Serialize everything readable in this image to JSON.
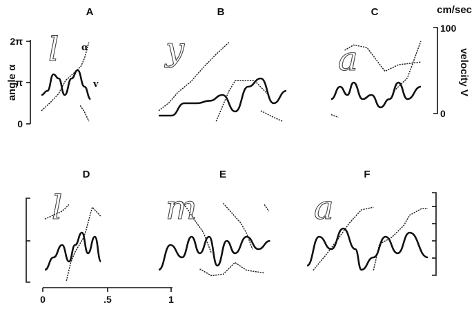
{
  "figure": {
    "left_axis": {
      "label": "angle α",
      "ticks": [
        "2π",
        "π",
        "0"
      ]
    },
    "right_axis": {
      "unit": "cm/sec",
      "label": "velocity V",
      "ticks": [
        "100",
        "0"
      ]
    },
    "time_axis": {
      "ticks": [
        "0",
        ".5",
        "1"
      ]
    },
    "curve_labels": {
      "angle": "α",
      "velocity": "v"
    }
  },
  "chart_data": [
    {
      "type": "line",
      "panel": "A",
      "letter": "l",
      "ylim": [
        0,
        6.2832
      ],
      "vlim": [
        0,
        100
      ],
      "series": [
        {
          "name": "α",
          "points": [
            [
              0,
              1.0
            ],
            [
              0.1,
              1.6
            ],
            [
              0.2,
              2.3
            ],
            [
              0.28,
              3.3
            ],
            [
              0.33,
              3.6
            ],
            [
              0.4,
              4.0
            ],
            [
              0.46,
              4.4
            ],
            [
              0.5,
              5.0
            ],
            [
              0.55,
              6.2
            ]
          ]
        },
        {
          "name": "α",
          "points": [
            [
              0.45,
              1.4
            ],
            [
              0.5,
              0.9
            ],
            [
              0.55,
              0.2
            ]
          ]
        },
        {
          "name": "v",
          "points": [
            [
              0,
              35
            ],
            [
              0.07,
              40
            ],
            [
              0.14,
              60
            ],
            [
              0.2,
              55
            ],
            [
              0.27,
              35
            ],
            [
              0.35,
              55
            ],
            [
              0.42,
              65
            ],
            [
              0.5,
              45
            ],
            [
              0.57,
              30
            ]
          ]
        }
      ]
    },
    {
      "type": "line",
      "panel": "B",
      "letter": "y",
      "ylim": [
        0,
        6.2832
      ],
      "vlim": [
        0,
        100
      ],
      "series": [
        {
          "name": "α",
          "points": [
            [
              0,
              1.0
            ],
            [
              0.08,
              1.6
            ],
            [
              0.15,
              2.4
            ],
            [
              0.25,
              3.2
            ],
            [
              0.35,
              4.3
            ],
            [
              0.45,
              5.3
            ],
            [
              0.55,
              6.2
            ]
          ]
        },
        {
          "name": "α",
          "points": [
            [
              0.45,
              0.2
            ],
            [
              0.55,
              2.5
            ],
            [
              0.6,
              3.3
            ],
            [
              0.75,
              3.3
            ],
            [
              0.85,
              2.3
            ]
          ]
        },
        {
          "name": "α",
          "points": [
            [
              0.8,
              1.0
            ],
            [
              0.9,
              0.5
            ],
            [
              0.97,
              0.2
            ]
          ]
        },
        {
          "name": "v",
          "points": [
            [
              0,
              10
            ],
            [
              0.1,
              10
            ],
            [
              0.2,
              25
            ],
            [
              0.3,
              25
            ],
            [
              0.4,
              28
            ],
            [
              0.5,
              35
            ],
            [
              0.6,
              15
            ],
            [
              0.7,
              45
            ],
            [
              0.8,
              55
            ],
            [
              0.9,
              25
            ],
            [
              1.0,
              40
            ]
          ]
        }
      ]
    },
    {
      "type": "line",
      "panel": "C",
      "letter": "a",
      "ylim": [
        0,
        6.2832
      ],
      "vlim": [
        0,
        100
      ],
      "series": [
        {
          "name": "α",
          "points": [
            [
              0.15,
              5.6
            ],
            [
              0.25,
              6.0
            ],
            [
              0.4,
              5.8
            ],
            [
              0.6,
              4.0
            ],
            [
              0.75,
              4.5
            ],
            [
              1.0,
              4.7
            ]
          ]
        },
        {
          "name": "α",
          "points": [
            [
              0.7,
              2.5
            ],
            [
              0.85,
              3.5
            ],
            [
              1.0,
              6.3
            ]
          ]
        },
        {
          "name": "α",
          "points": [
            [
              0,
              0.7
            ],
            [
              0.08,
              0.5
            ]
          ]
        },
        {
          "name": "v",
          "points": [
            [
              0,
              30
            ],
            [
              0.1,
              45
            ],
            [
              0.18,
              35
            ],
            [
              0.25,
              50
            ],
            [
              0.35,
              30
            ],
            [
              0.45,
              35
            ],
            [
              0.55,
              20
            ],
            [
              0.65,
              30
            ],
            [
              0.75,
              50
            ],
            [
              0.85,
              30
            ],
            [
              1.0,
              45
            ]
          ]
        }
      ]
    },
    {
      "type": "line",
      "panel": "D",
      "letter": "l",
      "ylim": [
        0,
        6.2832
      ],
      "vlim": [
        0,
        100
      ],
      "series": [
        {
          "name": "α",
          "points": [
            [
              0,
              4.8
            ],
            [
              0.1,
              5.1
            ],
            [
              0.2,
              5.4
            ],
            [
              0.28,
              5.9
            ]
          ]
        },
        {
          "name": "α",
          "points": [
            [
              0.25,
              0.1
            ],
            [
              0.3,
              1.5
            ],
            [
              0.35,
              2.3
            ],
            [
              0.45,
              3.4
            ],
            [
              0.48,
              4.0
            ],
            [
              0.52,
              5.0
            ],
            [
              0.55,
              5.7
            ],
            [
              0.65,
              5.0
            ]
          ]
        },
        {
          "name": "v",
          "points": [
            [
              0,
              15
            ],
            [
              0.1,
              30
            ],
            [
              0.2,
              45
            ],
            [
              0.28,
              25
            ],
            [
              0.35,
              45
            ],
            [
              0.43,
              60
            ],
            [
              0.5,
              35
            ],
            [
              0.58,
              55
            ],
            [
              0.65,
              25
            ]
          ]
        }
      ]
    },
    {
      "type": "line",
      "panel": "E",
      "letter": "m",
      "ylim": [
        0,
        6.2832
      ],
      "vlim": [
        0,
        100
      ],
      "series": [
        {
          "name": "α",
          "points": [
            [
              0.2,
              6.1
            ],
            [
              0.25,
              5.5
            ],
            [
              0.3,
              4.8
            ],
            [
              0.38,
              3.8
            ],
            [
              0.45,
              2.2
            ]
          ]
        },
        {
          "name": "α",
          "points": [
            [
              0.55,
              6.0
            ],
            [
              0.6,
              5.5
            ],
            [
              0.7,
              4.5
            ],
            [
              0.75,
              3.7
            ],
            [
              0.8,
              2.5
            ]
          ]
        },
        {
          "name": "α",
          "points": [
            [
              0.9,
              5.9
            ],
            [
              0.94,
              5.4
            ]
          ]
        },
        {
          "name": "α",
          "points": [
            [
              0.35,
              1.0
            ],
            [
              0.45,
              0.5
            ],
            [
              0.55,
              0.6
            ],
            [
              0.65,
              1.5
            ],
            [
              0.75,
              0.9
            ],
            [
              0.9,
              0.7
            ]
          ]
        },
        {
          "name": "v",
          "points": [
            [
              0,
              15
            ],
            [
              0.1,
              45
            ],
            [
              0.2,
              30
            ],
            [
              0.28,
              55
            ],
            [
              0.35,
              35
            ],
            [
              0.43,
              55
            ],
            [
              0.5,
              20
            ],
            [
              0.58,
              50
            ],
            [
              0.65,
              35
            ],
            [
              0.75,
              55
            ],
            [
              0.85,
              40
            ],
            [
              0.95,
              50
            ]
          ]
        }
      ]
    },
    {
      "type": "line",
      "panel": "F",
      "letter": "a",
      "ylim": [
        0,
        6.2832
      ],
      "vlim": [
        0,
        100
      ],
      "series": [
        {
          "name": "α",
          "points": [
            [
              0.05,
              0.9
            ],
            [
              0.15,
              2.0
            ],
            [
              0.25,
              3.2
            ],
            [
              0.35,
              4.5
            ],
            [
              0.45,
              5.5
            ],
            [
              0.55,
              5.7
            ]
          ]
        },
        {
          "name": "α",
          "points": [
            [
              0.55,
              0.9
            ],
            [
              0.6,
              2.9
            ],
            [
              0.7,
              3.4
            ],
            [
              0.8,
              4.3
            ],
            [
              0.85,
              5.1
            ],
            [
              0.95,
              5.6
            ],
            [
              1.0,
              5.6
            ]
          ]
        },
        {
          "name": "v",
          "points": [
            [
              0,
              20
            ],
            [
              0.1,
              55
            ],
            [
              0.2,
              40
            ],
            [
              0.3,
              65
            ],
            [
              0.4,
              40
            ],
            [
              0.45,
              15
            ],
            [
              0.55,
              30
            ],
            [
              0.65,
              55
            ],
            [
              0.75,
              35
            ],
            [
              0.85,
              60
            ],
            [
              1.0,
              30
            ]
          ]
        }
      ]
    }
  ]
}
